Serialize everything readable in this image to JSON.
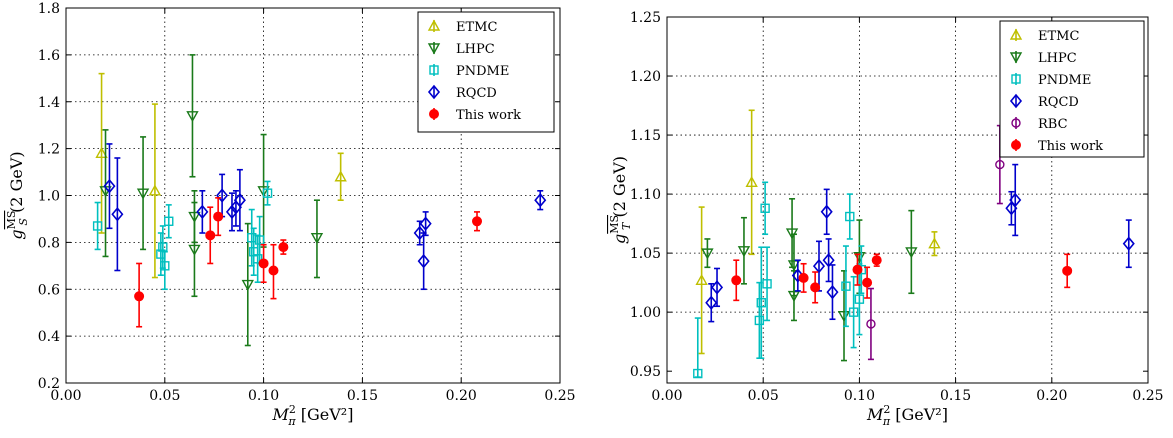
{
  "chart_data": [
    {
      "type": "scatter",
      "title": "",
      "xlabel": "M_π² [GeV²]",
      "ylabel": "g_S^MS (2 GeV)",
      "xlim": [
        0,
        0.25
      ],
      "ylim": [
        0.2,
        1.8
      ],
      "xticks": [
        "0.00",
        "0.05",
        "0.10",
        "0.15",
        "0.20",
        "0.25"
      ],
      "yticks": [
        "0.2",
        "0.4",
        "0.6",
        "0.8",
        "1.0",
        "1.2",
        "1.4",
        "1.6",
        "1.8"
      ],
      "grid": true,
      "legend_position": "top-right",
      "series": [
        {
          "name": "ETMC",
          "marker": "triangle-up",
          "color": "#bfbf00",
          "points": [
            [
              0.018,
              1.18,
              1.52,
              0.84
            ],
            [
              0.045,
              1.02,
              1.39,
              0.65
            ],
            [
              0.139,
              1.08,
              1.18,
              0.98
            ]
          ]
        },
        {
          "name": "LHPC",
          "marker": "triangle-down",
          "color": "#1a7a1a",
          "points": [
            [
              0.02,
              1.02,
              1.28,
              0.74
            ],
            [
              0.039,
              1.01,
              1.25,
              0.77
            ],
            [
              0.064,
              1.34,
              1.6,
              1.08
            ],
            [
              0.065,
              0.91,
              1.02,
              0.8
            ],
            [
              0.065,
              0.77,
              0.97,
              0.57
            ],
            [
              0.092,
              0.62,
              0.88,
              0.36
            ],
            [
              0.1,
              1.02,
              1.26,
              0.78
            ],
            [
              0.127,
              0.82,
              0.98,
              0.65
            ]
          ]
        },
        {
          "name": "PNDME",
          "marker": "square",
          "color": "#00bfbf",
          "points": [
            [
              0.016,
              0.87,
              0.97,
              0.77
            ],
            [
              0.048,
              0.75,
              0.84,
              0.66
            ],
            [
              0.049,
              0.78,
              0.87,
              0.69
            ],
            [
              0.05,
              0.7,
              0.76,
              0.6
            ],
            [
              0.052,
              0.89,
              0.96,
              0.82
            ],
            [
              0.094,
              0.82,
              0.94,
              0.7
            ],
            [
              0.095,
              0.76,
              0.86,
              0.66
            ],
            [
              0.097,
              0.73,
              0.83,
              0.63
            ],
            [
              0.098,
              0.81,
              0.91,
              0.71
            ],
            [
              0.102,
              1.01,
              1.06,
              0.96
            ]
          ]
        },
        {
          "name": "RQCD",
          "marker": "diamond",
          "color": "#0000cc",
          "points": [
            [
              0.022,
              1.04,
              1.22,
              0.86
            ],
            [
              0.026,
              0.92,
              1.16,
              0.68
            ],
            [
              0.069,
              0.93,
              1.02,
              0.84
            ],
            [
              0.079,
              1.0,
              1.09,
              0.91
            ],
            [
              0.084,
              0.93,
              1.01,
              0.85
            ],
            [
              0.086,
              0.95,
              1.02,
              0.87
            ],
            [
              0.088,
              0.98,
              1.11,
              0.85
            ],
            [
              0.179,
              0.84,
              0.89,
              0.79
            ],
            [
              0.181,
              0.72,
              0.84,
              0.6
            ],
            [
              0.182,
              0.88,
              0.93,
              0.83
            ],
            [
              0.24,
              0.98,
              1.02,
              0.94
            ]
          ]
        },
        {
          "name": "This work",
          "marker": "circle",
          "color": "#ff0000",
          "points": [
            [
              0.037,
              0.57,
              0.71,
              0.44
            ],
            [
              0.073,
              0.83,
              0.95,
              0.71
            ],
            [
              0.077,
              0.91,
              0.99,
              0.83
            ],
            [
              0.1,
              0.71,
              0.79,
              0.63
            ],
            [
              0.105,
              0.68,
              0.79,
              0.56
            ],
            [
              0.11,
              0.78,
              0.81,
              0.75
            ],
            [
              0.208,
              0.89,
              0.93,
              0.85
            ]
          ]
        }
      ]
    },
    {
      "type": "scatter",
      "title": "",
      "xlabel": "M_π² [GeV²]",
      "ylabel": "g_T^MS (2 GeV)",
      "xlim": [
        0,
        0.25
      ],
      "ylim": [
        0.94,
        1.25
      ],
      "xticks": [
        "0.00",
        "0.05",
        "0.10",
        "0.15",
        "0.20",
        "0.25"
      ],
      "yticks": [
        "0.95",
        "1.00",
        "1.05",
        "1.10",
        "1.15",
        "1.20",
        "1.25"
      ],
      "grid": true,
      "legend_position": "top-right",
      "series": [
        {
          "name": "ETMC",
          "marker": "triangle-up",
          "color": "#bfbf00",
          "points": [
            [
              0.018,
              1.027,
              1.089,
              0.965
            ],
            [
              0.044,
              1.11,
              1.171,
              1.049
            ],
            [
              0.139,
              1.058,
              1.068,
              1.048
            ]
          ]
        },
        {
          "name": "LHPC",
          "marker": "triangle-down",
          "color": "#1a7a1a",
          "points": [
            [
              0.021,
              1.05,
              1.062,
              1.038
            ],
            [
              0.04,
              1.052,
              1.08,
              1.024
            ],
            [
              0.065,
              1.067,
              1.096,
              1.038
            ],
            [
              0.066,
              1.04,
              1.066,
              1.014
            ],
            [
              0.066,
              1.014,
              1.035,
              0.993
            ],
            [
              0.092,
              0.997,
              1.035,
              0.959
            ],
            [
              0.1,
              1.047,
              1.078,
              1.016
            ],
            [
              0.127,
              1.051,
              1.086,
              1.016
            ]
          ]
        },
        {
          "name": "PNDME",
          "marker": "square",
          "color": "#00bfbf",
          "points": [
            [
              0.016,
              0.948,
              0.995,
              0.945
            ],
            [
              0.048,
              0.993,
              1.025,
              0.961
            ],
            [
              0.049,
              1.008,
              1.055,
              0.961
            ],
            [
              0.051,
              1.088,
              1.11,
              1.066
            ],
            [
              0.052,
              1.024,
              1.055,
              0.993
            ],
            [
              0.093,
              1.022,
              1.056,
              0.988
            ],
            [
              0.095,
              1.081,
              1.1,
              1.062
            ],
            [
              0.097,
              1.0,
              1.03,
              0.97
            ],
            [
              0.1,
              1.011,
              1.041,
              0.981
            ],
            [
              0.101,
              1.036,
              1.056,
              1.016
            ]
          ]
        },
        {
          "name": "RQCD",
          "marker": "diamond",
          "color": "#0000cc",
          "points": [
            [
              0.023,
              1.008,
              1.024,
              0.992
            ],
            [
              0.026,
              1.021,
              1.037,
              1.005
            ],
            [
              0.068,
              1.031,
              1.044,
              1.018
            ],
            [
              0.079,
              1.039,
              1.06,
              1.018
            ],
            [
              0.083,
              1.085,
              1.104,
              1.066
            ],
            [
              0.084,
              1.044,
              1.062,
              1.026
            ],
            [
              0.086,
              1.017,
              1.04,
              0.994
            ],
            [
              0.179,
              1.088,
              1.102,
              1.074
            ],
            [
              0.181,
              1.095,
              1.125,
              1.065
            ],
            [
              0.24,
              1.058,
              1.078,
              1.038
            ]
          ]
        },
        {
          "name": "RBC",
          "marker": "circle-open",
          "color": "#800080",
          "points": [
            [
              0.106,
              0.99,
              1.02,
              0.96
            ],
            [
              0.173,
              1.125,
              1.158,
              1.092
            ]
          ]
        },
        {
          "name": "This work",
          "marker": "circle",
          "color": "#ff0000",
          "points": [
            [
              0.036,
              1.027,
              1.044,
              1.01
            ],
            [
              0.071,
              1.029,
              1.041,
              1.017
            ],
            [
              0.077,
              1.021,
              1.034,
              1.008
            ],
            [
              0.099,
              1.036,
              1.049,
              1.023
            ],
            [
              0.104,
              1.025,
              1.038,
              1.012
            ],
            [
              0.109,
              1.044,
              1.049,
              1.039
            ],
            [
              0.208,
              1.035,
              1.049,
              1.021
            ]
          ]
        }
      ]
    }
  ]
}
